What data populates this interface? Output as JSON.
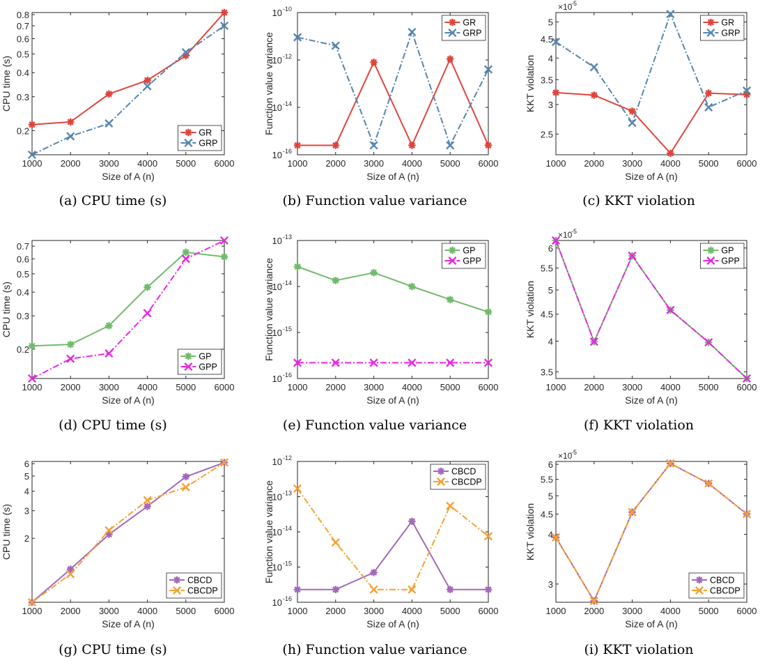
{
  "chart_data": [
    {
      "type": "line",
      "title": "",
      "caption": "(a)  CPU time (s)",
      "xlabel": "Size of A (n)",
      "ylabel": "CPU time (s)",
      "scale": "log",
      "x": [
        1000,
        2000,
        3000,
        4000,
        5000,
        6000
      ],
      "ylim": [
        0.15,
        0.82
      ],
      "yticks": [
        0.2,
        0.3,
        0.4,
        0.5,
        0.6,
        0.7,
        0.8
      ],
      "ytick_labels": [
        "0.2",
        "0.3",
        "0.4",
        "0.5",
        "0.6",
        "0.7",
        "0.8"
      ],
      "legend": "bottom-right",
      "series": [
        {
          "name": "GR",
          "values": [
            0.215,
            0.222,
            0.31,
            0.365,
            0.49,
            0.82
          ],
          "color": "#e0443c",
          "marker": "star",
          "dash": "solid"
        },
        {
          "name": "GRP",
          "values": [
            0.15,
            0.187,
            0.218,
            0.34,
            0.51,
            0.7
          ],
          "color": "#5585b0",
          "marker": "x",
          "dash": "dashdot"
        }
      ]
    },
    {
      "type": "line",
      "title": "",
      "caption": "(b)  Function value variance",
      "xlabel": "Size of A (n)",
      "ylabel": "Function value variance",
      "scale": "log",
      "x": [
        1000,
        2000,
        3000,
        4000,
        5000,
        6000
      ],
      "ylim": [
        1e-16,
        1e-10
      ],
      "yticks": [
        1e-16,
        1e-14,
        1e-12,
        1e-10
      ],
      "ytick_labels": [
        "10|-16",
        "10|-14",
        "10|-12",
        "10|-10"
      ],
      "legend": "top-right",
      "series": [
        {
          "name": "GR",
          "values": [
            2.5e-16,
            2.5e-16,
            8e-13,
            2.5e-16,
            1.1e-12,
            2.5e-16
          ],
          "color": "#e0443c",
          "marker": "star",
          "dash": "solid"
        },
        {
          "name": "GRP",
          "values": [
            9e-12,
            4e-12,
            2.5e-16,
            1.5e-11,
            2.5e-16,
            4e-13
          ],
          "color": "#5585b0",
          "marker": "x",
          "dash": "dashdot"
        }
      ]
    },
    {
      "type": "line",
      "title": "",
      "caption": "(c)  KKT violation",
      "xlabel": "Size of A (n)",
      "ylabel": "KKT violation",
      "scale": "log",
      "exponent": "-5",
      "x": [
        1000,
        2000,
        3000,
        4000,
        5000,
        6000
      ],
      "ylim": [
        2.2,
        5.3
      ],
      "yticks": [
        2.5,
        3,
        3.5,
        4,
        4.5,
        5
      ],
      "ytick_labels": [
        "2.5",
        "3",
        "3.5",
        "4",
        "4.5",
        "5"
      ],
      "legend": "top-right",
      "series": [
        {
          "name": "GR",
          "values": [
            3.23,
            3.18,
            2.88,
            2.22,
            3.22,
            3.19
          ],
          "color": "#e0443c",
          "marker": "star",
          "dash": "solid"
        },
        {
          "name": "GRP",
          "values": [
            4.42,
            3.78,
            2.68,
            5.25,
            2.95,
            3.27
          ],
          "color": "#5585b0",
          "marker": "x",
          "dash": "dashdot"
        }
      ]
    },
    {
      "type": "line",
      "title": "",
      "caption": "(d)  CPU time (s)",
      "xlabel": "Size of A (n)",
      "ylabel": "CPU time (s)",
      "scale": "log",
      "x": [
        1000,
        2000,
        3000,
        4000,
        5000,
        6000
      ],
      "ylim": [
        0.14,
        0.75
      ],
      "yticks": [
        0.2,
        0.3,
        0.4,
        0.5,
        0.6,
        0.7
      ],
      "ytick_labels": [
        "0.2",
        "0.3",
        "0.4",
        "0.5",
        "0.6",
        "0.7"
      ],
      "legend": "bottom-right",
      "series": [
        {
          "name": "GP",
          "values": [
            0.208,
            0.212,
            0.266,
            0.425,
            0.65,
            0.615
          ],
          "color": "#70bb6a",
          "marker": "star",
          "dash": "solid"
        },
        {
          "name": "GPP",
          "values": [
            0.14,
            0.178,
            0.19,
            0.31,
            0.6,
            0.75
          ],
          "color": "#e926e4",
          "marker": "x",
          "dash": "dashdot"
        }
      ]
    },
    {
      "type": "line",
      "title": "",
      "caption": "(e)  Function value variance",
      "xlabel": "Size of A (n)",
      "ylabel": "Function value variance",
      "scale": "log",
      "x": [
        1000,
        2000,
        3000,
        4000,
        5000,
        6000
      ],
      "ylim": [
        1e-16,
        1e-13
      ],
      "yticks": [
        1e-16,
        1e-15,
        1e-14,
        1e-13
      ],
      "ytick_labels": [
        "10|-16",
        "10|-15",
        "10|-14",
        "10|-13"
      ],
      "legend": "top-right",
      "series": [
        {
          "name": "GP",
          "values": [
            2.7e-14,
            1.35e-14,
            2e-14,
            1e-14,
            5.2e-15,
            2.8e-15
          ],
          "color": "#70bb6a",
          "marker": "star",
          "dash": "solid"
        },
        {
          "name": "GPP",
          "values": [
            2.2e-16,
            2.2e-16,
            2.2e-16,
            2.2e-16,
            2.2e-16,
            2.2e-16
          ],
          "color": "#e926e4",
          "marker": "x",
          "dash": "dashdot"
        }
      ]
    },
    {
      "type": "line",
      "title": "",
      "caption": "(f)  KKT violation",
      "xlabel": "Size of A (n)",
      "ylabel": "KKT violation",
      "scale": "log",
      "exponent": "-5",
      "x": [
        1000,
        2000,
        3000,
        4000,
        5000,
        6000
      ],
      "ylim": [
        3.4,
        6.2
      ],
      "yticks": [
        3.5,
        4,
        4.5,
        5,
        5.5,
        6
      ],
      "ytick_labels": [
        "3.5",
        "4",
        "4.5",
        "5",
        "5.5",
        "6"
      ],
      "legend": "top-right",
      "series": [
        {
          "name": "GP",
          "values": [
            6.2,
            3.99,
            5.8,
            4.58,
            3.98,
            3.4
          ],
          "color": "#70bb6a",
          "marker": "star",
          "dash": "solid"
        },
        {
          "name": "GPP",
          "values": [
            6.2,
            3.99,
            5.8,
            4.58,
            3.98,
            3.4
          ],
          "color": "#e926e4",
          "marker": "x",
          "dash": "dashdot"
        }
      ]
    },
    {
      "type": "line",
      "title": "",
      "caption": "(g)  CPU time (s)",
      "xlabel": "Size of A (n)",
      "ylabel": "CPU time (s)",
      "scale": "log",
      "x": [
        1000,
        2000,
        3000,
        4000,
        5000,
        6000
      ],
      "ylim": [
        0.78,
        6.2
      ],
      "yticks": [
        2,
        3,
        4,
        5,
        6
      ],
      "ytick_labels": [
        "2",
        "3",
        "4",
        "5",
        "6"
      ],
      "legend": "bottom-right",
      "series": [
        {
          "name": "CBCD",
          "values": [
            0.78,
            1.27,
            2.12,
            3.2,
            4.95,
            6.1
          ],
          "color": "#a468ba",
          "marker": "star",
          "dash": "solid"
        },
        {
          "name": "CBCDP",
          "values": [
            0.78,
            1.18,
            2.25,
            3.5,
            4.25,
            6.1
          ],
          "color": "#f7a030",
          "marker": "x",
          "dash": "dashdot"
        }
      ]
    },
    {
      "type": "line",
      "title": "",
      "caption": "(h)  Function value variance",
      "xlabel": "Size of A (n)",
      "ylabel": "Function value variance",
      "scale": "log",
      "x": [
        1000,
        2000,
        3000,
        4000,
        5000,
        6000
      ],
      "ylim": [
        1e-16,
        1e-12
      ],
      "yticks": [
        1e-16,
        1e-15,
        1e-14,
        1e-13,
        1e-12
      ],
      "ytick_labels": [
        "10|-16",
        "10|-15",
        "10|-14",
        "10|-13",
        "10|-12"
      ],
      "legend": "top-right",
      "series": [
        {
          "name": "CBCD",
          "values": [
            2.3e-16,
            2.3e-16,
            7e-16,
            2e-14,
            2.3e-16,
            2.3e-16
          ],
          "color": "#a468ba",
          "marker": "star",
          "dash": "solid"
        },
        {
          "name": "CBCDP",
          "values": [
            1.7e-13,
            5e-15,
            2.3e-16,
            2.3e-16,
            5.5e-14,
            7.5e-15
          ],
          "color": "#f7a030",
          "marker": "x",
          "dash": "dashdot"
        }
      ]
    },
    {
      "type": "line",
      "title": "",
      "caption": "(i)  KKT violation",
      "xlabel": "Size of A (n)",
      "ylabel": "KKT violation",
      "scale": "log",
      "exponent": "-5",
      "x": [
        1000,
        2000,
        3000,
        4000,
        5000,
        6000
      ],
      "ylim": [
        2.7,
        6.1
      ],
      "yticks": [
        3,
        4,
        4.5,
        5,
        5.5,
        6
      ],
      "ytick_labels": [
        "3",
        "4",
        "4.5",
        "5",
        "5.5",
        "6"
      ],
      "legend": "bottom-right",
      "series": [
        {
          "name": "CBCD",
          "values": [
            3.93,
            2.72,
            4.55,
            6.03,
            5.37,
            4.5
          ],
          "color": "#a468ba",
          "marker": "star",
          "dash": "solid"
        },
        {
          "name": "CBCDP",
          "values": [
            3.93,
            2.72,
            4.55,
            6.03,
            5.37,
            4.5
          ],
          "color": "#f7a030",
          "marker": "x",
          "dash": "dashdot"
        }
      ]
    }
  ]
}
